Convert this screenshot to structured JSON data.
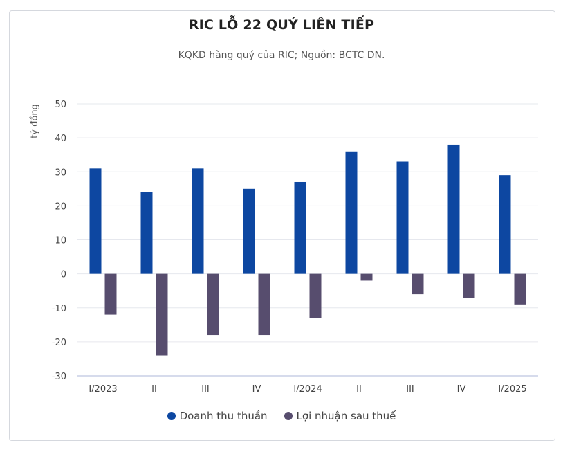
{
  "chart_data": {
    "type": "bar",
    "title": "RIC LỖ 22 QUÝ LIÊN TIẾP",
    "subtitle": "KQKD hàng quý của RIC; Nguồn: BCTC DN.",
    "ylabel": "tỷ đồng",
    "xlabel": "",
    "ylim": [
      -30,
      50
    ],
    "yticks": [
      "50",
      "40",
      "30",
      "20",
      "10",
      "0",
      "-10",
      "-20",
      "-30"
    ],
    "categories": [
      "I/2023",
      "II",
      "III",
      "IV",
      "I/2024",
      "II",
      "III",
      "IV",
      "I/2025"
    ],
    "series": [
      {
        "name": "Doanh thu thuần",
        "color": "#0d47a1",
        "values": [
          31,
          24,
          31,
          25,
          27,
          36,
          33,
          38,
          29
        ]
      },
      {
        "name": "Lợi nhuận sau thuế",
        "color": "#574d6e",
        "values": [
          -12,
          -24,
          -18,
          -18,
          -13,
          -2,
          -6,
          -7,
          -9
        ]
      }
    ],
    "grid": true,
    "legend_position": "bottom"
  }
}
